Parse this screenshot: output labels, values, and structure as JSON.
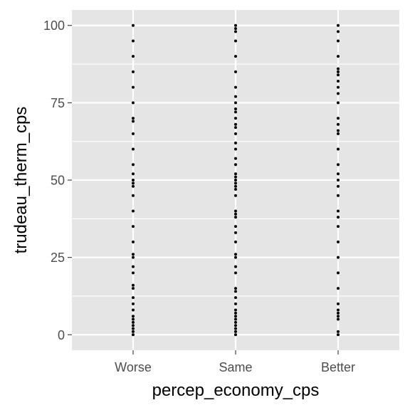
{
  "chart_data": {
    "type": "scatter",
    "title": "",
    "xlabel": "percep_economy_cps",
    "ylabel": "trudeau_therm_cps",
    "categories": [
      "Worse",
      "Same",
      "Better"
    ],
    "ylim": [
      -5,
      105
    ],
    "yticks": [
      0,
      25,
      50,
      75,
      100
    ],
    "y_minor_ticks": [
      12.5,
      37.5,
      62.5,
      87.5
    ],
    "grid": true,
    "legend": "none",
    "colors": {
      "panel": "#e5e5e5",
      "grid": "#ffffff",
      "point": "#000000",
      "tick_label": "#4d4d4d",
      "tick": "#333333"
    },
    "series": [
      {
        "category": "Worse",
        "values": [
          0,
          1,
          2,
          3,
          4,
          5,
          6,
          8,
          10,
          12,
          15,
          16,
          20,
          22,
          25,
          26,
          30,
          35,
          40,
          45,
          48,
          49,
          50,
          52,
          55,
          60,
          65,
          69,
          70,
          75,
          80,
          85,
          90,
          95,
          100
        ]
      },
      {
        "category": "Same",
        "values": [
          0,
          1,
          2,
          3,
          4,
          5,
          6,
          7,
          8,
          10,
          12,
          14,
          15,
          20,
          22,
          25,
          26,
          30,
          33,
          35,
          38,
          39,
          40,
          45,
          47,
          48,
          49,
          50,
          51,
          52,
          55,
          57,
          60,
          62,
          65,
          67,
          68,
          70,
          72,
          73,
          75,
          77,
          80,
          85,
          90,
          95,
          98,
          99,
          100
        ]
      },
      {
        "category": "Better",
        "values": [
          0,
          1,
          5,
          6,
          7,
          8,
          10,
          15,
          20,
          25,
          30,
          35,
          38,
          40,
          45,
          48,
          50,
          52,
          55,
          60,
          65,
          66,
          68,
          70,
          75,
          78,
          80,
          82,
          84,
          85,
          86,
          90,
          95,
          98,
          100
        ]
      }
    ]
  }
}
